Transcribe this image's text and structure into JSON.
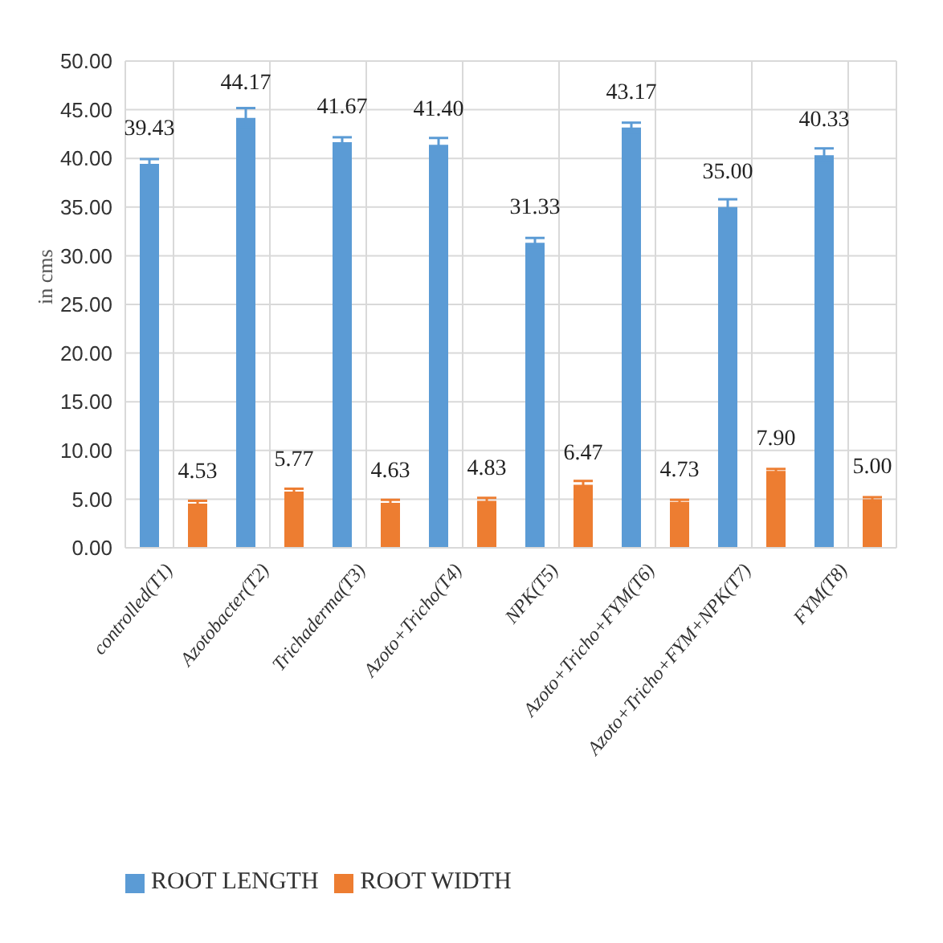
{
  "chart_data": {
    "type": "bar",
    "ylabel": "in cms",
    "categories": [
      "controlled(T1)",
      "Azotobacter(T2)",
      "Trichaderma(T3)",
      "Azoto+Tricho(T4)",
      "NPK(T5)",
      "Azoto+Tricho+FYM(T6)",
      "Azoto+Tricho+FYM+NPK(T7)",
      "FYM(T8)"
    ],
    "series": [
      {
        "name": "ROOT LENGTH",
        "color": "#5b9bd5",
        "values": [
          39.43,
          44.17,
          41.67,
          41.4,
          31.33,
          43.17,
          35.0,
          40.33
        ],
        "errors": [
          0.5,
          1,
          0.5,
          0.7,
          0.5,
          0.5,
          0.8,
          0.7
        ],
        "value_labels": [
          "39.43",
          "44.17",
          "41.67",
          "41.40",
          "31.33",
          "43.17",
          "35.00",
          "40.33"
        ]
      },
      {
        "name": "ROOT WIDTH",
        "color": "#ed7d31",
        "values": [
          4.53,
          5.77,
          4.63,
          4.83,
          6.47,
          4.73,
          7.9,
          5.0
        ],
        "errors": [
          0.3,
          0.3,
          0.3,
          0.3,
          0.4,
          0.2,
          0.2,
          0.2
        ],
        "value_labels": [
          "4.53",
          "5.77",
          "4.63",
          "4.83",
          "6.47",
          "4.73",
          "7.90",
          "5.00"
        ]
      }
    ],
    "ylim": [
      0,
      50
    ],
    "yticks": [
      {
        "value": 0,
        "label": "0.00"
      },
      {
        "value": 5,
        "label": "5.00"
      },
      {
        "value": 10,
        "label": "10.00"
      },
      {
        "value": 15,
        "label": "15.00"
      },
      {
        "value": 20,
        "label": "20.00"
      },
      {
        "value": 25,
        "label": "25.00"
      },
      {
        "value": 30,
        "label": "30.00"
      },
      {
        "value": 35,
        "label": "35.00"
      },
      {
        "value": 40,
        "label": "40.00"
      },
      {
        "value": 45,
        "label": "45.00"
      },
      {
        "value": 50,
        "label": "50.00"
      }
    ],
    "grid": true,
    "legend": "bottom"
  }
}
